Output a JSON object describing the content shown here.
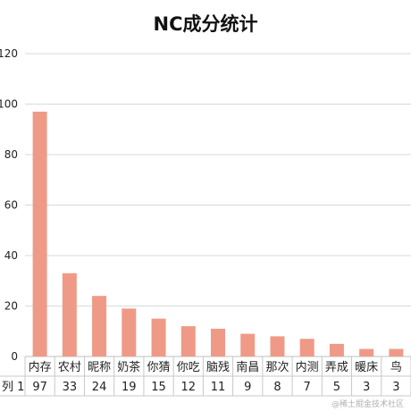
{
  "chart_data": {
    "type": "bar",
    "title": "NC成分统计",
    "categories": [
      "内存",
      "农村",
      "昵称",
      "奶茶",
      "你猜",
      "你吃",
      "脑残",
      "南昌",
      "那次",
      "内测",
      "弄成",
      "暖床",
      "鸟"
    ],
    "series": [
      {
        "name": "列 1",
        "values": [
          97,
          33,
          24,
          19,
          15,
          12,
          11,
          9,
          8,
          7,
          5,
          3,
          3
        ]
      }
    ],
    "yticks": [
      0,
      20,
      40,
      60,
      80,
      100,
      120
    ],
    "ylim": [
      0,
      120
    ],
    "grid": true,
    "legend": "none",
    "data_table": true,
    "bar_color": "#ef9a87"
  },
  "watermark": "@稀土掘金技术社区"
}
